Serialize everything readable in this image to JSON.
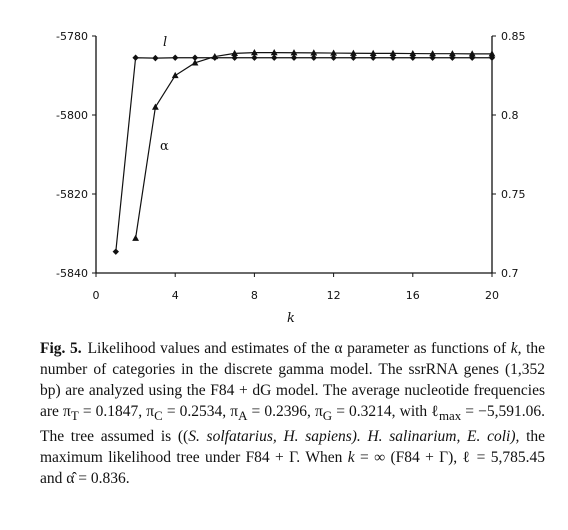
{
  "chart_data": {
    "type": "line",
    "title": "",
    "xlabel": "k",
    "x_ticks": [
      "0",
      "4",
      "8",
      "12",
      "16",
      "20"
    ],
    "xlim": [
      0,
      20
    ],
    "left_axis": {
      "ticks": [
        "-5780",
        "-5800",
        "-5820",
        "-5840"
      ],
      "ylim": [
        -5840,
        -5780
      ]
    },
    "right_axis": {
      "ticks": [
        "0.85",
        "0.8",
        "0.75",
        "0.7"
      ],
      "ylim": [
        0.7,
        0.85
      ]
    },
    "grid": false,
    "series": [
      {
        "name": "l",
        "axis": "left",
        "marker": "diamond",
        "x": [
          1,
          2,
          3,
          4,
          5,
          6,
          7,
          8,
          9,
          10,
          11,
          12,
          13,
          14,
          15,
          16,
          17,
          18,
          19,
          20
        ],
        "y": [
          -5834.6,
          -5785.5,
          -5785.6,
          -5785.5,
          -5785.5,
          -5785.5,
          -5785.5,
          -5785.5,
          -5785.5,
          -5785.5,
          -5785.5,
          -5785.5,
          -5785.5,
          -5785.5,
          -5785.5,
          -5785.5,
          -5785.5,
          -5785.5,
          -5785.5,
          -5785.5
        ]
      },
      {
        "name": "α",
        "axis": "right",
        "marker": "triangle",
        "x": [
          2,
          3,
          4,
          5,
          6,
          7,
          8,
          9,
          10,
          11,
          12,
          13,
          14,
          15,
          16,
          17,
          18,
          19,
          20
        ],
        "y": [
          0.722,
          0.805,
          0.825,
          0.833,
          0.837,
          0.839,
          0.8395,
          0.8395,
          0.8394,
          0.8393,
          0.8392,
          0.8391,
          0.839,
          0.839,
          0.8389,
          0.8388,
          0.8388,
          0.8387,
          0.8387
        ]
      }
    ]
  },
  "caption": {
    "label": "Fig. 5.",
    "text": "Likelihood values and estimates of the α parameter as functions of k, the number of categories in the discrete gamma model. The ssrRNA genes (1,352 bp) are analyzed using the F84 + dG model. The average nucleotide frequencies are π_T = 0.1847, π_C = 0.2534, π_A = 0.2396, π_G = 0.3214, with ℓ_max = −5,591.06. The tree assumed is ((S. solfatarius, H. sapiens). H. salinarium, E. coli), the maximum likelihood tree under F84 + Γ. When k = ∞ (F84 + Γ), ℓ = 5,785.45 and α̂ = 0.836.",
    "seg": {
      "s1": "Likelihood values and estimates of the α parameter as functions of",
      "s2": "k,",
      "s3": "the number of categories in the discrete gamma model. The ssrRNA genes (1,352 bp) are analyzed using the F84 + dG model. The average nucleotide frequencies are π",
      "T": "T",
      "s4": " = 0.1847, π",
      "C": "C",
      "s5": " = 0.2534, π",
      "A": "A",
      "s6": " = 0.2396, π",
      "G": "G",
      "s7": " = 0.3214, with ℓ",
      "max": "max",
      "s8": " = −5,591.06. The tree assumed is ((",
      "s9": "S. solfatarius, H. sapiens). H. salinarium, E. coli),",
      "s10": " the maximum likelihood tree under F84 + Γ. When",
      "s11": "k",
      "s12": " = ∞ (F84 + Γ), ℓ = 5,785.45 and α̂ = 0.836."
    }
  }
}
